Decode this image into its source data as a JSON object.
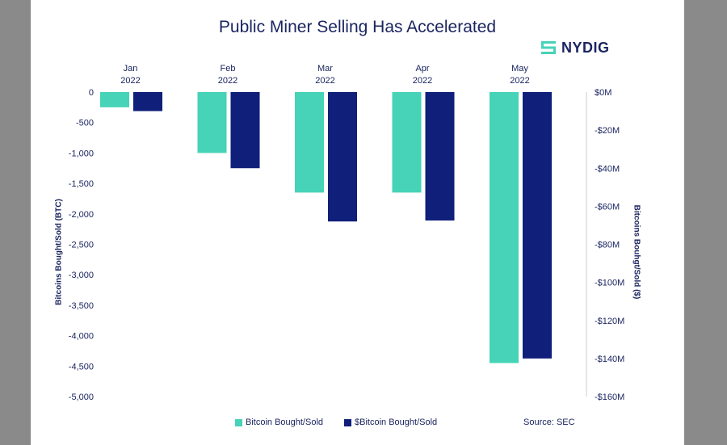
{
  "title": "Public Miner Selling Has Accelerated",
  "logo": {
    "text": "NYDIG",
    "icon": "nydig-logo-icon"
  },
  "source": "Source: SEC",
  "colors": {
    "btc": "#46d3b7",
    "usd": "#0f1f7a",
    "text": "#1b2560",
    "background": "#ffffff"
  },
  "chart_data": {
    "type": "bar",
    "title": "Public Miner Selling Has Accelerated",
    "categories": [
      "Jan 2022",
      "Feb 2022",
      "Mar 2022",
      "Apr 2022",
      "May 2022"
    ],
    "category_lines": [
      [
        "Jan",
        "2022"
      ],
      [
        "Feb",
        "2022"
      ],
      [
        "Mar",
        "2022"
      ],
      [
        "Apr",
        "2022"
      ],
      [
        "May",
        "2022"
      ]
    ],
    "ylabel": "Bitcoins Bought/Sold (BTC)",
    "y2label": "Bitcoins Bouhgt/Sold ($)",
    "ylim": [
      -5000,
      0
    ],
    "y2lim": [
      -160,
      0
    ],
    "yticks": [
      0,
      -500,
      -1000,
      -1500,
      -2000,
      -2500,
      -3000,
      -3500,
      -4000,
      -4500,
      -5000
    ],
    "ytick_labels": [
      "0",
      "-500",
      "-1,000",
      "-1,500",
      "-2,000",
      "-2,500",
      "-3,000",
      "-3,500",
      "-4,000",
      "-4,500",
      "-5,000"
    ],
    "y2ticks": [
      0,
      -20,
      -40,
      -60,
      -80,
      -100,
      -120,
      -140,
      -160
    ],
    "y2tick_labels": [
      "$0M",
      "-$20M",
      "-$40M",
      "-$60M",
      "-$80M",
      "-$100M",
      "-$120M",
      "-$140M",
      "-$160M"
    ],
    "series": [
      {
        "name": "Bitcoin Bought/Sold",
        "axis": "left",
        "unit": "BTC",
        "values": [
          -250,
          -1000,
          -1650,
          -1650,
          -4450
        ]
      },
      {
        "name": "$Bitcoin Bought/Sold",
        "axis": "right",
        "unit": "$M",
        "values": [
          -10,
          -40,
          -68,
          -67.5,
          -140
        ]
      }
    ],
    "grid": false,
    "legend": "bottom"
  }
}
